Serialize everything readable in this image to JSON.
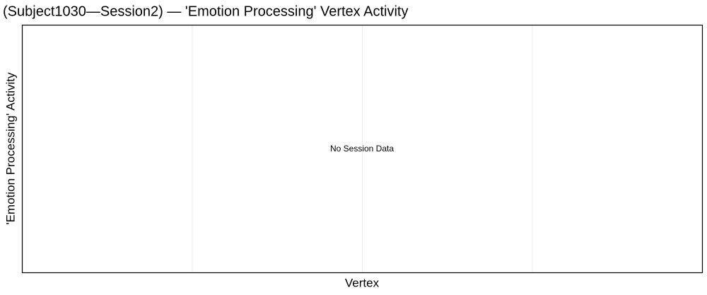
{
  "chart_data": {
    "type": "line",
    "title": "(Subject1030—Session2) — 'Emotion Processing' Vertex Activity",
    "x_label": "Vertex",
    "y_label": "'Emotion Processing' Activity",
    "annotation": "No Session Data",
    "series": [],
    "grid": true
  }
}
